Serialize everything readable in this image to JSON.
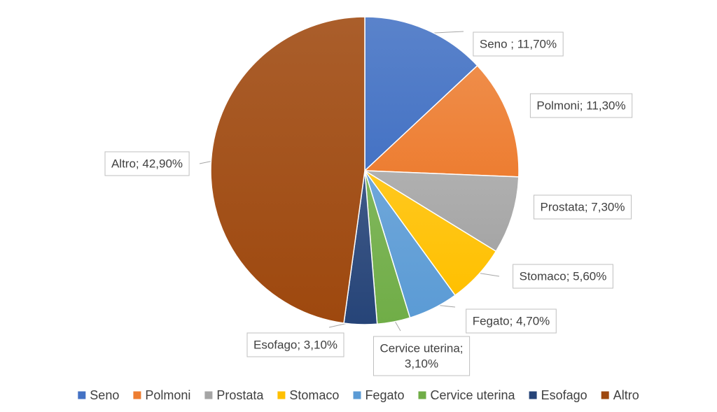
{
  "chart_data": {
    "type": "pie",
    "title": "",
    "start_angle_deg": 0,
    "direction": "clockwise",
    "legend_position": "bottom",
    "categories": [
      "Seno",
      "Polmoni",
      "Prostata",
      "Stomaco",
      "Fegato",
      "Cervice uterina",
      "Esofago",
      "Altro"
    ],
    "values": [
      11.7,
      11.3,
      7.3,
      5.6,
      4.7,
      3.1,
      3.1,
      42.9
    ],
    "colors": [
      "#4472C4",
      "#ED7D31",
      "#A5A5A5",
      "#FFC000",
      "#5B9BD5",
      "#70AD47",
      "#264478",
      "#9E480E"
    ],
    "data_labels": [
      [
        "Seno ; 11,70%"
      ],
      [
        "Polmoni; 11,30%"
      ],
      [
        "Prostata; 7,30%"
      ],
      [
        "Stomaco; 5,60%"
      ],
      [
        "Fegato; 4,70%"
      ],
      [
        "Cervice uterina;",
        "3,10%"
      ],
      [
        "Esofago; 3,10%"
      ],
      [
        "Altro; 42,90%"
      ]
    ],
    "legend": [
      "Seno",
      "Polmoni",
      "Prostata",
      "Stomaco",
      "Fegato",
      "Cervice uterina",
      "Esofago",
      "Altro"
    ]
  }
}
